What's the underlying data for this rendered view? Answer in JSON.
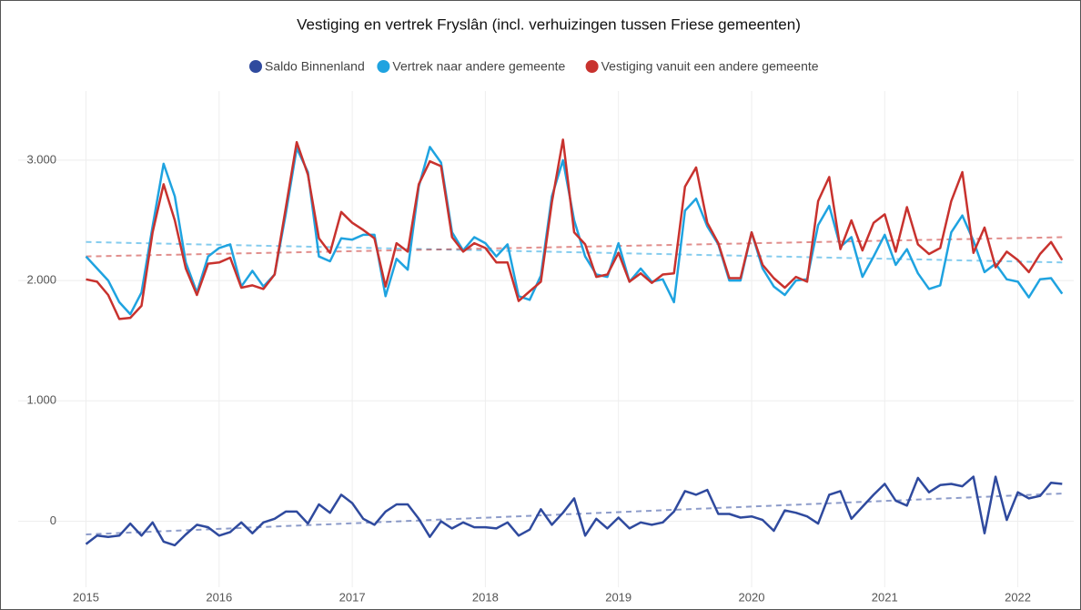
{
  "chart_data": {
    "type": "line",
    "title": "Vestiging en vertrek Fryslân (incl.  verhuizingen tussen Friese gemeenten)",
    "x": [
      2015,
      2015.083,
      2015.167,
      2015.25,
      2015.333,
      2015.417,
      2015.5,
      2015.583,
      2015.667,
      2015.75,
      2015.833,
      2015.917,
      2016,
      2016.083,
      2016.167,
      2016.25,
      2016.333,
      2016.417,
      2016.5,
      2016.583,
      2016.667,
      2016.75,
      2016.833,
      2016.917,
      2017,
      2017.083,
      2017.167,
      2017.25,
      2017.333,
      2017.417,
      2017.5,
      2017.583,
      2017.667,
      2017.75,
      2017.833,
      2017.917,
      2018,
      2018.083,
      2018.167,
      2018.25,
      2018.333,
      2018.417,
      2018.5,
      2018.583,
      2018.667,
      2018.75,
      2018.833,
      2018.917,
      2019,
      2019.083,
      2019.167,
      2019.25,
      2019.333,
      2019.417,
      2019.5,
      2019.583,
      2019.667,
      2019.75,
      2019.833,
      2019.917,
      2020,
      2020.083,
      2020.167,
      2020.25,
      2020.333,
      2020.417,
      2020.5,
      2020.583,
      2020.667,
      2020.75,
      2020.833,
      2020.917,
      2021,
      2021.083,
      2021.167,
      2021.25,
      2021.333,
      2021.417,
      2021.5,
      2021.583,
      2021.667,
      2021.75,
      2021.833,
      2021.917,
      2022,
      2022.083,
      2022.167,
      2022.25,
      2022.333
    ],
    "series": [
      {
        "name": "Saldo Binnenland",
        "color": "#2f4a9e",
        "trend": [
          -110,
          230
        ],
        "values": [
          -190,
          -120,
          -130,
          -120,
          -20,
          -120,
          -10,
          -170,
          -200,
          -110,
          -30,
          -50,
          -120,
          -90,
          -10,
          -100,
          -10,
          20,
          80,
          80,
          -20,
          140,
          70,
          220,
          150,
          20,
          -30,
          80,
          140,
          140,
          20,
          -130,
          0,
          -60,
          -10,
          -50,
          -50,
          -60,
          -10,
          -120,
          -70,
          100,
          -30,
          70,
          190,
          -120,
          20,
          -60,
          30,
          -60,
          -10,
          -30,
          -10,
          80,
          250,
          220,
          260,
          60,
          60,
          30,
          40,
          10,
          -80,
          90,
          70,
          40,
          -20,
          220,
          250,
          20,
          120,
          220,
          310,
          170,
          130,
          360,
          240,
          300,
          310,
          290,
          370,
          -100,
          370,
          10,
          240,
          190,
          210,
          320,
          310
        ]
      },
      {
        "name": "Vertrek naar andere gemeente",
        "color": "#1fa3e0",
        "trend": [
          2320,
          2150
        ],
        "values": [
          2200,
          2100,
          2000,
          1820,
          1720,
          1900,
          2450,
          2970,
          2700,
          2150,
          1900,
          2200,
          2270,
          2300,
          1950,
          2080,
          1950,
          2050,
          2550,
          3100,
          2900,
          2200,
          2160,
          2350,
          2340,
          2380,
          2380,
          1870,
          2180,
          2090,
          2780,
          3110,
          2980,
          2400,
          2250,
          2360,
          2310,
          2200,
          2300,
          1870,
          1840,
          2040,
          2700,
          3000,
          2500,
          2200,
          2050,
          2030,
          2310,
          1990,
          2100,
          1990,
          2010,
          1820,
          2580,
          2680,
          2450,
          2300,
          2000,
          2000,
          2400,
          2100,
          1950,
          1880,
          2000,
          2010,
          2460,
          2620,
          2280,
          2360,
          2030,
          2200,
          2380,
          2130,
          2260,
          2060,
          1930,
          1960,
          2400,
          2540,
          2330,
          2070,
          2140,
          2010,
          1990,
          1860,
          2010,
          2020,
          1890
        ]
      },
      {
        "name": "Vestiging vanuit een andere gemeente",
        "color": "#c8322e",
        "trend": [
          2200,
          2360
        ],
        "values": [
          2010,
          1990,
          1880,
          1680,
          1690,
          1790,
          2400,
          2800,
          2500,
          2100,
          1880,
          2140,
          2150,
          2190,
          1940,
          1960,
          1930,
          2050,
          2600,
          3150,
          2880,
          2350,
          2230,
          2570,
          2480,
          2420,
          2350,
          1950,
          2310,
          2240,
          2800,
          2990,
          2950,
          2360,
          2240,
          2310,
          2270,
          2150,
          2150,
          1830,
          1910,
          1990,
          2650,
          3170,
          2400,
          2300,
          2030,
          2050,
          2230,
          1990,
          2060,
          1980,
          2050,
          2060,
          2780,
          2940,
          2480,
          2310,
          2020,
          2020,
          2400,
          2130,
          2020,
          1940,
          2030,
          1990,
          2660,
          2860,
          2260,
          2500,
          2250,
          2480,
          2550,
          2240,
          2610,
          2300,
          2220,
          2270,
          2660,
          2900,
          2230,
          2440,
          2110,
          2240,
          2170,
          2070,
          2220,
          2320,
          2170
        ]
      }
    ],
    "xlim": [
      2014.6,
      2022.42
    ],
    "xticks": [
      2015,
      2016,
      2017,
      2018,
      2019,
      2020,
      2021,
      2022
    ],
    "ylim": [
      -700,
      3650
    ],
    "yticks": [
      {
        "value": 0,
        "label": "0"
      },
      {
        "value": 1000,
        "label": "1.000"
      },
      {
        "value": 2000,
        "label": "2.000"
      },
      {
        "value": 3000,
        "label": "3.000"
      }
    ],
    "grid": true
  }
}
